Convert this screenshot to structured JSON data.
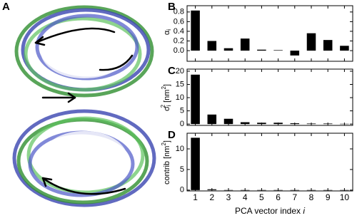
{
  "panel_a_label": "A",
  "chart_data": [
    {
      "type": "bar",
      "panel": "B",
      "ylabel": [
        "α",
        "i"
      ],
      "color": "#000000",
      "categories": [
        null,
        null,
        null,
        null,
        null,
        null,
        null,
        null,
        null,
        null
      ],
      "values": [
        0.83,
        0.2,
        0.05,
        0.25,
        0.02,
        0.01,
        -0.1,
        0.36,
        0.22,
        0.1
      ],
      "ylim": [
        -0.22,
        0.93
      ],
      "yticks": [
        {
          "value": 0,
          "label": "0.0"
        },
        0.2,
        0.4,
        0.6,
        0.8
      ]
    },
    {
      "type": "bar",
      "panel": "C",
      "ylabel": [
        "σ",
        "i",
        "2",
        " [nm",
        "2",
        "]"
      ],
      "color": "#000000",
      "categories": [
        null,
        null,
        null,
        null,
        null,
        null,
        null,
        null,
        null,
        null
      ],
      "values": [
        18.7,
        3.6,
        2.0,
        0.7,
        0.5,
        0.5,
        0.3,
        0.2,
        0.2,
        0.1
      ],
      "ylim": [
        -0.5,
        20.8
      ],
      "yticks": [
        0,
        5,
        10,
        15,
        20
      ]
    },
    {
      "type": "bar",
      "panel": "D",
      "ylabel": [
        "contrib [nm",
        "2",
        "]"
      ],
      "color": "#000000",
      "xlabel": [
        "PCA vector index ",
        "i"
      ],
      "categories": [
        "1",
        "2",
        "3",
        "4",
        "5",
        "6",
        "7",
        "8",
        "9",
        "10"
      ],
      "values": [
        12.7,
        0.2,
        0.02,
        0.02,
        0.02,
        0.02,
        0.02,
        0.02,
        0.02,
        0.02
      ],
      "ylim": [
        -0.2,
        13.8
      ],
      "yticks": [
        0,
        5,
        10
      ]
    }
  ]
}
